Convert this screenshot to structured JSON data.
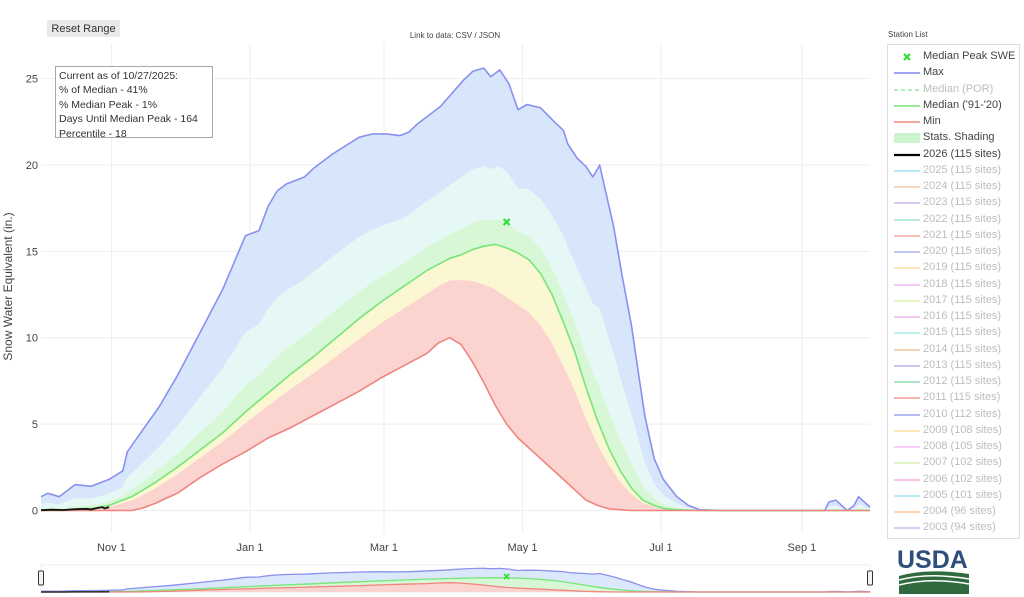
{
  "reset_button": "Reset Range",
  "data_link": "Link to data: CSV / JSON",
  "station_list_title": "Station List",
  "info_box": {
    "lines": [
      "Current as of 10/27/2025:",
      "% of Median - 41%",
      "% Median Peak - 1%",
      "Days Until Median Peak - 164",
      "Percentile - 18"
    ]
  },
  "legend": [
    {
      "label": "Median Peak SWE",
      "symbol": "x",
      "color": "#33dd33",
      "faded": false
    },
    {
      "label": "Max",
      "symbol": "line",
      "color": "#7f85ec",
      "faded": false
    },
    {
      "label": "Median (POR)",
      "symbol": "dash",
      "color": "#9be39b",
      "faded": true
    },
    {
      "label": "Median ('91-'20)",
      "symbol": "line",
      "color": "#77e677",
      "faded": false
    },
    {
      "label": "Min",
      "symbol": "line",
      "color": "#f28a86",
      "faded": false
    },
    {
      "label": "Stats. Shading",
      "symbol": "band",
      "color": "#cdf5cd",
      "faded": false
    },
    {
      "label": "2026 (115 sites)",
      "symbol": "line",
      "color": "#000000",
      "faded": false
    },
    {
      "label": "2025 (115 sites)",
      "symbol": "line",
      "color": "#9fe4f0",
      "faded": true
    },
    {
      "label": "2024 (115 sites)",
      "symbol": "line",
      "color": "#f6c9a6",
      "faded": true
    },
    {
      "label": "2023 (115 sites)",
      "symbol": "line",
      "color": "#d4b8f3",
      "faded": true
    },
    {
      "label": "2022 (115 sites)",
      "symbol": "line",
      "color": "#9ee6c2",
      "faded": true
    },
    {
      "label": "2021 (115 sites)",
      "symbol": "line",
      "color": "#f4a9a4",
      "faded": true
    },
    {
      "label": "2020 (115 sites)",
      "symbol": "line",
      "color": "#aeb2f1",
      "faded": true
    },
    {
      "label": "2019 (115 sites)",
      "symbol": "line",
      "color": "#f8dfa0",
      "faded": true
    },
    {
      "label": "2018 (115 sites)",
      "symbol": "line",
      "color": "#f3b8f0",
      "faded": true
    },
    {
      "label": "2017 (115 sites)",
      "symbol": "line",
      "color": "#d9f3b1",
      "faded": true
    },
    {
      "label": "2016 (115 sites)",
      "symbol": "line",
      "color": "#f4b8e8",
      "faded": true
    },
    {
      "label": "2015 (115 sites)",
      "symbol": "line",
      "color": "#a6ece6",
      "faded": true
    },
    {
      "label": "2014 (115 sites)",
      "symbol": "line",
      "color": "#e8c99a",
      "faded": true
    },
    {
      "label": "2013 (115 sites)",
      "symbol": "line",
      "color": "#c2aef0",
      "faded": true
    },
    {
      "label": "2012 (115 sites)",
      "symbol": "line",
      "color": "#8fdcb4",
      "faded": true
    },
    {
      "label": "2011 (115 sites)",
      "symbol": "line",
      "color": "#f39c97",
      "faded": true
    },
    {
      "label": "2010 (112 sites)",
      "symbol": "line",
      "color": "#9ea3ee",
      "faded": true
    },
    {
      "label": "2009 (108 sites)",
      "symbol": "line",
      "color": "#f8e09b",
      "faded": true
    },
    {
      "label": "2008 (105 sites)",
      "symbol": "line",
      "color": "#f6bdf3",
      "faded": true
    },
    {
      "label": "2007 (102 sites)",
      "symbol": "line",
      "color": "#d6f0b0",
      "faded": true
    },
    {
      "label": "2006 (102 sites)",
      "symbol": "line",
      "color": "#f4b3e0",
      "faded": true
    },
    {
      "label": "2005 (101 sites)",
      "symbol": "line",
      "color": "#a4e4f4",
      "faded": true
    },
    {
      "label": "2004 (96 sites)",
      "symbol": "line",
      "color": "#f7c8a4",
      "faded": true
    },
    {
      "label": "2003 (94 sites)",
      "symbol": "line",
      "color": "#d4b8f3",
      "faded": true
    }
  ],
  "logo_text": "USDA",
  "chart_data": {
    "type": "area",
    "ylabel": "Snow Water Equivalent (in.)",
    "xlabel": "",
    "x_tick_labels": [
      "Nov 1",
      "Jan 1",
      "Mar 1",
      "May 1",
      "Jul 1",
      "Sep 1"
    ],
    "x_tick_days": [
      31,
      92,
      151,
      212,
      273,
      335
    ],
    "x_axis_note": "days since Oct 1",
    "yticks": [
      0,
      5,
      10,
      15,
      20,
      25
    ],
    "xlim": [
      0,
      365
    ],
    "ylim": [
      -1.3,
      27
    ],
    "series": [
      {
        "name": "Max",
        "color": "#8a90ee",
        "x": [
          0,
          3,
          8,
          15,
          22,
          30,
          36,
          38,
          45,
          52,
          60,
          70,
          80,
          90,
          96,
          100,
          104,
          108,
          112,
          116,
          120,
          128,
          134,
          140,
          146,
          152,
          158,
          162,
          166,
          172,
          176,
          180,
          186,
          190,
          192,
          195,
          198,
          202,
          206,
          210,
          214,
          220,
          226,
          230,
          232,
          236,
          240,
          243,
          246,
          248,
          252,
          256,
          260,
          263,
          266,
          270,
          274,
          280,
          285,
          290,
          300,
          320,
          330,
          345,
          347,
          350,
          355,
          358,
          360,
          365
        ],
        "y": [
          0.8,
          1.0,
          0.8,
          1.5,
          1.4,
          1.8,
          2.3,
          3.4,
          4.7,
          6.0,
          7.8,
          10.3,
          12.8,
          15.9,
          16.2,
          17.6,
          18.5,
          18.9,
          19.1,
          19.3,
          19.8,
          20.6,
          21.1,
          21.6,
          21.8,
          21.8,
          21.7,
          21.9,
          22.4,
          23.0,
          23.4,
          24.0,
          24.9,
          25.4,
          25.5,
          25.6,
          25.1,
          25.5,
          24.7,
          23.2,
          23.5,
          23.3,
          22.5,
          22.0,
          21.2,
          20.4,
          19.9,
          19.3,
          20.0,
          18.8,
          16.5,
          13.5,
          10.7,
          8.0,
          5.4,
          3.0,
          1.8,
          0.8,
          0.3,
          0.05,
          0.0,
          0.0,
          0.0,
          0.0,
          0.5,
          0.6,
          0.0,
          0.3,
          0.8,
          0.2
        ]
      },
      {
        "name": "Median ('91-'20)",
        "color": "#77e677",
        "x": [
          0,
          10,
          20,
          25,
          30,
          40,
          50,
          60,
          70,
          80,
          90,
          100,
          110,
          120,
          130,
          140,
          150,
          160,
          170,
          180,
          185,
          190,
          195,
          200,
          205,
          210,
          215,
          220,
          225,
          230,
          235,
          240,
          245,
          250,
          255,
          260,
          265,
          270,
          275,
          280,
          290,
          300,
          320,
          365
        ],
        "y": [
          0.0,
          0.0,
          0.1,
          0.15,
          0.3,
          0.8,
          1.6,
          2.5,
          3.5,
          4.5,
          5.7,
          6.8,
          7.9,
          8.9,
          10.0,
          11.1,
          12.1,
          13.0,
          13.9,
          14.6,
          14.8,
          15.1,
          15.3,
          15.4,
          15.2,
          14.9,
          14.5,
          13.7,
          12.5,
          10.9,
          9.2,
          7.1,
          5.2,
          3.6,
          2.3,
          1.3,
          0.6,
          0.3,
          0.1,
          0.05,
          0.0,
          0.0,
          0.0,
          0.0
        ]
      },
      {
        "name": "Min",
        "color": "#f0847f",
        "x": [
          0,
          20,
          30,
          40,
          45,
          50,
          55,
          60,
          70,
          80,
          90,
          100,
          110,
          120,
          130,
          140,
          150,
          160,
          170,
          175,
          180,
          185,
          190,
          195,
          200,
          205,
          210,
          220,
          230,
          240,
          245,
          250,
          255,
          260,
          265,
          270,
          365
        ],
        "y": [
          0,
          0,
          0,
          0,
          0.15,
          0.4,
          0.7,
          1.0,
          1.9,
          2.7,
          3.4,
          4.2,
          4.8,
          5.5,
          6.2,
          6.9,
          7.7,
          8.4,
          9.1,
          9.7,
          10.0,
          9.6,
          8.6,
          7.4,
          6.1,
          5.0,
          4.2,
          3.0,
          1.8,
          0.6,
          0.3,
          0.1,
          0.05,
          0.0,
          0.0,
          0.0,
          0.0
        ]
      },
      {
        "name": "2026 (115 sites)",
        "color": "#111111",
        "x": [
          0,
          5,
          10,
          15,
          20,
          22,
          25,
          27,
          28,
          30
        ],
        "y": [
          0.02,
          0.05,
          0.03,
          0.08,
          0.1,
          0.06,
          0.15,
          0.2,
          0.12,
          0.2
        ]
      }
    ],
    "bands": [
      {
        "name": "90-max",
        "color": "#d8e6fb"
      },
      {
        "name": "70-90",
        "color": "#e6f8f6"
      },
      {
        "name": "50-70",
        "color": "#d7f7d7"
      },
      {
        "name": "30-50",
        "color": "#fbf7d2"
      },
      {
        "name": "10-30",
        "color": "#fbd4d0"
      }
    ],
    "median_peak": {
      "x": 205,
      "y": 16.7,
      "label": "Median Peak SWE"
    }
  }
}
